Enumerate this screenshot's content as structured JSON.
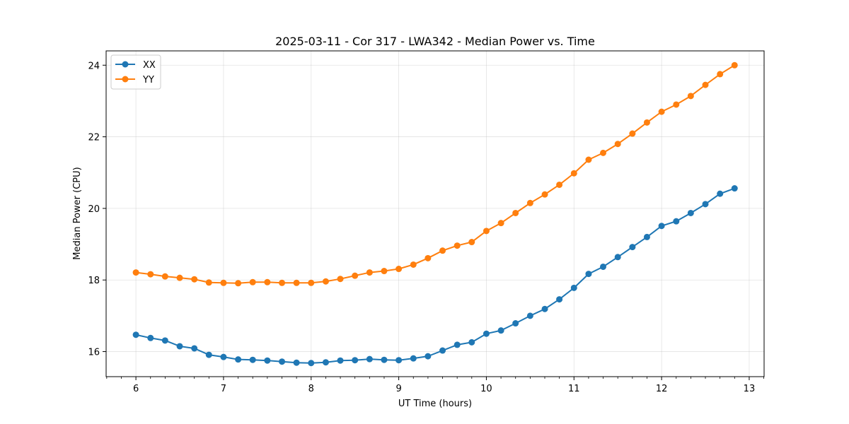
{
  "chart_data": {
    "type": "line",
    "title": "2025-03-11 - Cor 317 - LWA342 - Median Power vs. Time",
    "xlabel": "UT Time (hours)",
    "ylabel": "Median Power (CPU)",
    "xlim": [
      5.66,
      13.17
    ],
    "ylim": [
      15.3,
      24.4
    ],
    "xticks": [
      6,
      7,
      8,
      9,
      10,
      11,
      12,
      13
    ],
    "yticks": [
      16,
      18,
      20,
      22,
      24
    ],
    "grid": true,
    "legend_position": "upper-left",
    "x": [
      6.0,
      6.167,
      6.333,
      6.5,
      6.667,
      6.833,
      7.0,
      7.167,
      7.333,
      7.5,
      7.667,
      7.833,
      8.0,
      8.167,
      8.333,
      8.5,
      8.667,
      8.833,
      9.0,
      9.167,
      9.333,
      9.5,
      9.667,
      9.833,
      10.0,
      10.167,
      10.333,
      10.5,
      10.667,
      10.833,
      11.0,
      11.167,
      11.333,
      11.5,
      11.667,
      11.833,
      12.0,
      12.167,
      12.333,
      12.5,
      12.667,
      12.833
    ],
    "series": [
      {
        "name": "XX",
        "color": "#1f77b4",
        "values": [
          16.47,
          16.38,
          16.31,
          16.15,
          16.09,
          15.91,
          15.85,
          15.78,
          15.77,
          15.75,
          15.72,
          15.69,
          15.68,
          15.7,
          15.75,
          15.76,
          15.79,
          15.77,
          15.76,
          15.81,
          15.87,
          16.03,
          16.19,
          16.26,
          16.5,
          16.59,
          16.79,
          17.0,
          17.19,
          17.46,
          17.78,
          18.17,
          18.37,
          18.64,
          18.92,
          19.2,
          19.51,
          19.64,
          19.87,
          20.12,
          20.41,
          20.56
        ]
      },
      {
        "name": "YY",
        "color": "#ff7f0e",
        "values": [
          18.21,
          18.16,
          18.1,
          18.06,
          18.02,
          17.93,
          17.92,
          17.91,
          17.94,
          17.94,
          17.92,
          17.92,
          17.92,
          17.96,
          18.03,
          18.12,
          18.21,
          18.25,
          18.31,
          18.43,
          18.61,
          18.82,
          18.96,
          19.06,
          19.37,
          19.59,
          19.87,
          20.15,
          20.39,
          20.66,
          20.98,
          21.36,
          21.55,
          21.8,
          22.09,
          22.4,
          22.7,
          22.9,
          23.14,
          23.45,
          23.75,
          24.0
        ]
      }
    ]
  }
}
